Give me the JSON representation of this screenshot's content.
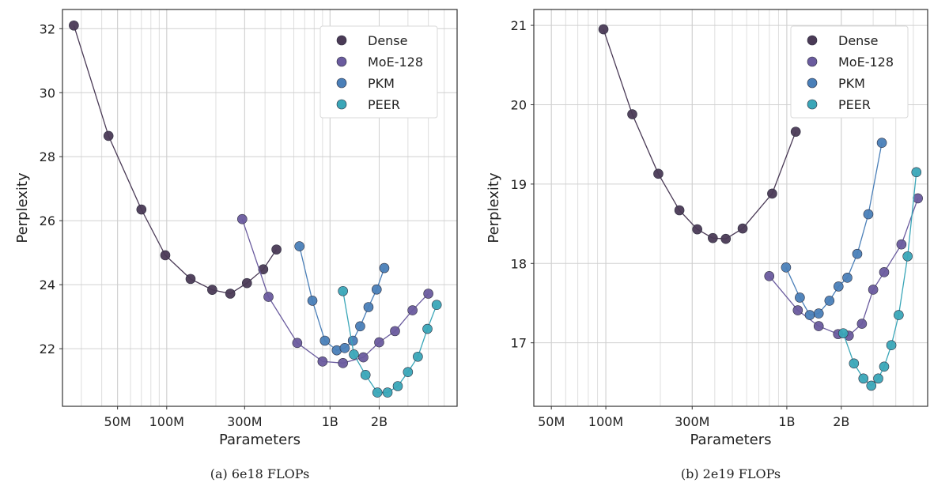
{
  "chart_data": [
    {
      "type": "scatter",
      "caption": "(a) 6e18 FLOPs",
      "xlabel": "Parameters",
      "ylabel": "Perplexity",
      "xscale": "log",
      "xlim": [
        23000000,
        6000000000
      ],
      "ylim": [
        20.2,
        32.6
      ],
      "x_ticks": [
        50000000,
        100000000,
        300000000,
        1000000000,
        2000000000
      ],
      "x_tick_labels": [
        "50M",
        "100M",
        "300M",
        "1B",
        "2B"
      ],
      "y_ticks": [
        22,
        24,
        26,
        28,
        30,
        32
      ],
      "y_tick_labels": [
        "22",
        "24",
        "26",
        "28",
        "30",
        "32"
      ],
      "grid": true,
      "legend_position": "top-right",
      "series": [
        {
          "name": "Dense",
          "color": "#4a3a56",
          "x": [
            27000000,
            44000000,
            70000000,
            98000000,
            140000000,
            190000000,
            245000000,
            310000000,
            390000000,
            470000000
          ],
          "y": [
            32.1,
            28.65,
            26.35,
            24.92,
            24.18,
            23.84,
            23.72,
            24.05,
            24.48,
            25.1
          ]
        },
        {
          "name": "MoE-128",
          "color": "#6a5b9e",
          "x": [
            290000000,
            420000000,
            630000000,
            900000000,
            1200000000,
            1600000000,
            2000000000,
            2500000000,
            3200000000,
            4000000000
          ],
          "y": [
            26.05,
            23.62,
            22.18,
            21.6,
            21.55,
            21.73,
            22.2,
            22.55,
            23.2,
            23.72
          ]
        },
        {
          "name": "PKM",
          "color": "#4a7fb8",
          "x": [
            650000000,
            780000000,
            930000000,
            1100000000,
            1230000000,
            1380000000,
            1530000000,
            1720000000,
            1930000000,
            2150000000
          ],
          "y": [
            25.2,
            23.5,
            22.25,
            21.95,
            22.02,
            22.25,
            22.7,
            23.3,
            23.85,
            24.52
          ]
        },
        {
          "name": "PEER",
          "color": "#3aa6b8",
          "x": [
            1200000000,
            1400000000,
            1650000000,
            1950000000,
            2250000000,
            2600000000,
            3000000000,
            3450000000,
            3950000000,
            4500000000
          ],
          "y": [
            23.8,
            21.82,
            21.18,
            20.63,
            20.63,
            20.83,
            21.27,
            21.75,
            22.62,
            23.37
          ]
        }
      ]
    },
    {
      "type": "scatter",
      "caption": "(b) 2e19 FLOPs",
      "xlabel": "Parameters",
      "ylabel": "Perplexity",
      "xscale": "log",
      "xlim": [
        40000000,
        6000000000
      ],
      "ylim": [
        16.2,
        21.2
      ],
      "x_ticks": [
        50000000,
        100000000,
        300000000,
        1000000000,
        2000000000
      ],
      "x_tick_labels": [
        "50M",
        "100M",
        "300M",
        "1B",
        "2B"
      ],
      "y_ticks": [
        17,
        18,
        19,
        20,
        21
      ],
      "y_tick_labels": [
        "17",
        "18",
        "19",
        "20",
        "21"
      ],
      "grid": true,
      "legend_position": "top-right",
      "series": [
        {
          "name": "Dense",
          "color": "#4a3a56",
          "x": [
            97000000,
            140000000,
            195000000,
            255000000,
            320000000,
            390000000,
            460000000,
            570000000,
            830000000,
            1120000000
          ],
          "y": [
            20.95,
            19.88,
            19.13,
            18.67,
            18.43,
            18.32,
            18.31,
            18.44,
            18.88,
            19.66
          ]
        },
        {
          "name": "MoE-128",
          "color": "#6a5b9e",
          "x": [
            800000000,
            1150000000,
            1500000000,
            1920000000,
            2200000000,
            2600000000,
            3000000000,
            3450000000,
            4300000000,
            5300000000
          ],
          "y": [
            17.84,
            17.41,
            17.21,
            17.11,
            17.09,
            17.24,
            17.67,
            17.89,
            18.24,
            18.82
          ]
        },
        {
          "name": "PKM",
          "color": "#4a7fb8",
          "x": [
            990000000,
            1180000000,
            1340000000,
            1500000000,
            1720000000,
            1930000000,
            2160000000,
            2450000000,
            2820000000,
            3350000000
          ],
          "y": [
            17.95,
            17.57,
            17.35,
            17.37,
            17.53,
            17.71,
            17.82,
            18.12,
            18.62,
            19.52
          ]
        },
        {
          "name": "PEER",
          "color": "#3aa6b8",
          "x": [
            2050000000,
            2350000000,
            2650000000,
            2930000000,
            3200000000,
            3450000000,
            3780000000,
            4150000000,
            4650000000,
            5200000000
          ],
          "y": [
            17.12,
            16.74,
            16.55,
            16.46,
            16.55,
            16.7,
            16.97,
            17.35,
            18.09,
            19.15
          ]
        }
      ]
    }
  ]
}
